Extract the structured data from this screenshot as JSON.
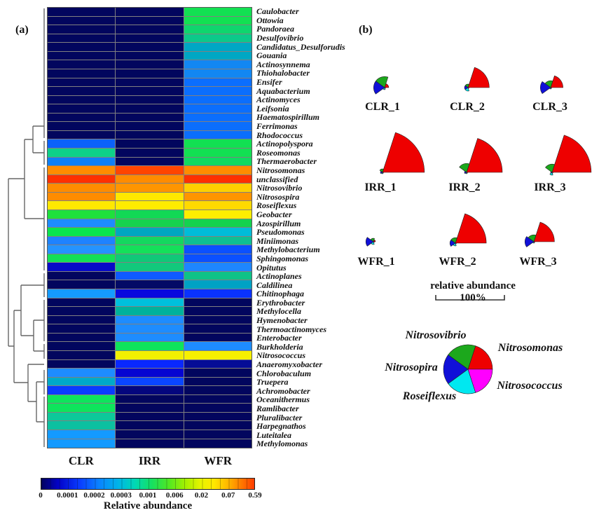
{
  "panel_a": {
    "label": "(a)"
  },
  "panel_b": {
    "label": "(b)",
    "scale_text": "relative abundance 100%"
  },
  "chart_data": [
    {
      "type": "heatmap",
      "panel": "(a)",
      "columns": [
        "CLR",
        "IRR",
        "WFR"
      ],
      "colorbar": {
        "label": "Relative abundance",
        "ticks": [
          "0",
          "0.0001",
          "0.0002",
          "0.0003",
          "0.001",
          "0.006",
          "0.02",
          "0.07",
          "0.59"
        ]
      },
      "value_encoding": "cell colors encode relative abundance on a jet scale from 0 (navy) to 0.59 (orange-red)",
      "rows": [
        {
          "name": "Caulobacter",
          "colors": [
            "#02065E",
            "#02065E",
            "#12E052"
          ]
        },
        {
          "name": "Ottowia",
          "colors": [
            "#02065E",
            "#02065E",
            "#12E052"
          ]
        },
        {
          "name": "Pandoraea",
          "colors": [
            "#02065E",
            "#02065E",
            "#0FD56E"
          ]
        },
        {
          "name": "Desulfovibrio",
          "colors": [
            "#02065E",
            "#02065E",
            "#0CC98A"
          ]
        },
        {
          "name": "Candidatus_Desulforudis",
          "colors": [
            "#02065E",
            "#02065E",
            "#00A7C4"
          ]
        },
        {
          "name": "Gouania",
          "colors": [
            "#02065E",
            "#02065E",
            "#00A7C4"
          ]
        },
        {
          "name": "Actinosynnema",
          "colors": [
            "#02065E",
            "#02065E",
            "#1287F2"
          ]
        },
        {
          "name": "Thiohalobacter",
          "colors": [
            "#02065E",
            "#02065E",
            "#1287F2"
          ]
        },
        {
          "name": "Ensifer",
          "colors": [
            "#02065E",
            "#02065E",
            "#0B6EFD"
          ]
        },
        {
          "name": "Aquabacterium",
          "colors": [
            "#02065E",
            "#02065E",
            "#0B6EFD"
          ]
        },
        {
          "name": "Actinomyces",
          "colors": [
            "#02065E",
            "#02065E",
            "#0B6EFD"
          ]
        },
        {
          "name": "Leifsonia",
          "colors": [
            "#02065E",
            "#02065E",
            "#0B6EFD"
          ]
        },
        {
          "name": "Haematospirillum",
          "colors": [
            "#02065E",
            "#02065E",
            "#0B6EFD"
          ]
        },
        {
          "name": "Ferrimonas",
          "colors": [
            "#02065E",
            "#02065E",
            "#0B6EFD"
          ]
        },
        {
          "name": "Rhodococcus",
          "colors": [
            "#02065E",
            "#02065E",
            "#0B6EFD"
          ]
        },
        {
          "name": "Actinopolyspora",
          "colors": [
            "#0B62FA",
            "#02065E",
            "#12E052"
          ]
        },
        {
          "name": "Roseomonas",
          "colors": [
            "#0ED089",
            "#02065E",
            "#12E052"
          ]
        },
        {
          "name": "Thermaerobacter",
          "colors": [
            "#0E7FF5",
            "#02065E",
            "#10DA60"
          ]
        },
        {
          "name": "Nitrosomonas",
          "colors": [
            "#FF8C00",
            "#FF4500",
            "#FF8C00"
          ]
        },
        {
          "name": "unclassified",
          "colors": [
            "#FF3000",
            "#FF8C00",
            "#FF3000"
          ]
        },
        {
          "name": "Nitrosovibrio",
          "colors": [
            "#FF8C00",
            "#FF9500",
            "#FFD000"
          ]
        },
        {
          "name": "Nitrosospira",
          "colors": [
            "#FF8C00",
            "#FFE800",
            "#FF9500"
          ]
        },
        {
          "name": "Roseiflexus",
          "colors": [
            "#FFE800",
            "#FFEC00",
            "#FFD900"
          ]
        },
        {
          "name": "Geobacter",
          "colors": [
            "#1FE03C",
            "#12D855",
            "#FFEE00"
          ]
        },
        {
          "name": "Azospirillum",
          "colors": [
            "#1E8CFF",
            "#16D24E",
            "#14D24E"
          ]
        },
        {
          "name": "Pseudomonas",
          "colors": [
            "#0AE44E",
            "#00A6C0",
            "#00BCD8"
          ]
        },
        {
          "name": "Miniimonas",
          "colors": [
            "#1E82FF",
            "#14D75F",
            "#0FBF92"
          ]
        },
        {
          "name": "Methylobacterium",
          "colors": [
            "#2493FF",
            "#14E05A",
            "#0B50FF"
          ]
        },
        {
          "name": "Sphingomonas",
          "colors": [
            "#13E056",
            "#10C878",
            "#0B50FF"
          ]
        },
        {
          "name": "Opitutus",
          "colors": [
            "#0709C8",
            "#12C87C",
            "#1E86FF"
          ]
        },
        {
          "name": "Actinoplanes",
          "colors": [
            "#02065E",
            "#0F5AFF",
            "#0FC287"
          ]
        },
        {
          "name": "Caldilinea",
          "colors": [
            "#02065E",
            "#030A66",
            "#00A2C4"
          ]
        },
        {
          "name": "Chitinophaga",
          "colors": [
            "#159AFF",
            "#0808DE",
            "#0A32FF"
          ]
        },
        {
          "name": "Erythrobacter",
          "colors": [
            "#02065E",
            "#00C0DC",
            "#02065E"
          ]
        },
        {
          "name": "Methylocella",
          "colors": [
            "#02065E",
            "#00B29B",
            "#02065E"
          ]
        },
        {
          "name": "Hymenobacter",
          "colors": [
            "#02065E",
            "#1E8CFF",
            "#02065E"
          ]
        },
        {
          "name": "Thermoactinomyces",
          "colors": [
            "#02065E",
            "#1E8CFF",
            "#02065E"
          ]
        },
        {
          "name": "Enterobacter",
          "colors": [
            "#02065E",
            "#1E8CFF",
            "#02065E"
          ]
        },
        {
          "name": "Burkholderia",
          "colors": [
            "#02065E",
            "#0EE45C",
            "#1E8CFF"
          ]
        },
        {
          "name": "Nitrosococcus",
          "colors": [
            "#02065E",
            "#F2F000",
            "#F7F000"
          ]
        },
        {
          "name": "Anaeromyxobacter",
          "colors": [
            "#02065E",
            "#0A28FF",
            "#050C96"
          ]
        },
        {
          "name": "Chlorobaculum",
          "colors": [
            "#1E8CFF",
            "#0505D2",
            "#02065E"
          ]
        },
        {
          "name": "Truepera",
          "colors": [
            "#00AAC8",
            "#0A46FF",
            "#02065E"
          ]
        },
        {
          "name": "Achromobacter",
          "colors": [
            "#0A3CFF",
            "#04077E",
            "#02065E"
          ]
        },
        {
          "name": "Oceanithermus",
          "colors": [
            "#0EE45C",
            "#02065E",
            "#02065E"
          ]
        },
        {
          "name": "Ramlibacter",
          "colors": [
            "#0EE45C",
            "#02065E",
            "#02065E"
          ]
        },
        {
          "name": "Pluralibacter",
          "colors": [
            "#0CC89A",
            "#02065E",
            "#02065E"
          ]
        },
        {
          "name": "Harpegnathos",
          "colors": [
            "#0CC0A0",
            "#02065E",
            "#02065E"
          ]
        },
        {
          "name": "Luteitalea",
          "colors": [
            "#149AFF",
            "#02065E",
            "#02065E"
          ]
        },
        {
          "name": "Methylomonas",
          "colors": [
            "#149AFF",
            "#02065E",
            "#02065E"
          ]
        }
      ]
    },
    {
      "type": "pie",
      "panel": "(b)",
      "variant": "polar-fan",
      "scale_label": "relative abundance 100%",
      "sectors": [
        {
          "genus": "Nitrosomonas",
          "color": "#EE0000",
          "start_deg": 0,
          "end_deg": 72
        },
        {
          "genus": "Nitrosovibrio",
          "color": "#1CA81C",
          "start_deg": 72,
          "end_deg": 144
        },
        {
          "genus": "Nitrosopira",
          "color": "#1010D8",
          "start_deg": 144,
          "end_deg": 216
        },
        {
          "genus": "Roseiflexus",
          "color": "#00E8F0",
          "start_deg": 216,
          "end_deg": 288
        },
        {
          "genus": "Nitrosococcus",
          "color": "#FF00FF",
          "start_deg": 288,
          "end_deg": 360
        }
      ],
      "samples": [
        {
          "name": "CLR_1",
          "values_percent": [
            6,
            16,
            16,
            3,
            1
          ]
        },
        {
          "name": "CLR_2",
          "values_percent": [
            31,
            5,
            5,
            5,
            1
          ]
        },
        {
          "name": "CLR_3",
          "values_percent": [
            18,
            10,
            15,
            2,
            1
          ]
        },
        {
          "name": "IRR_1",
          "values_percent": [
            61,
            5,
            3,
            2,
            1
          ]
        },
        {
          "name": "IRR_2",
          "values_percent": [
            52,
            13,
            3,
            2,
            1
          ]
        },
        {
          "name": "IRR_3",
          "values_percent": [
            57,
            12,
            2,
            4,
            1
          ]
        },
        {
          "name": "WFR_1",
          "values_percent": [
            3,
            5,
            11,
            4,
            1
          ]
        },
        {
          "name": "WFR_2",
          "values_percent": [
            45,
            8,
            8,
            4,
            1
          ]
        },
        {
          "name": "WFR_3",
          "values_percent": [
            30,
            10,
            13,
            2,
            1
          ]
        }
      ],
      "legend_labels": [
        "Nitrosovibrio",
        "Nitrosomonas",
        "Nitrosopira",
        "Nitrosococcus",
        "Roseiflexus"
      ]
    }
  ]
}
